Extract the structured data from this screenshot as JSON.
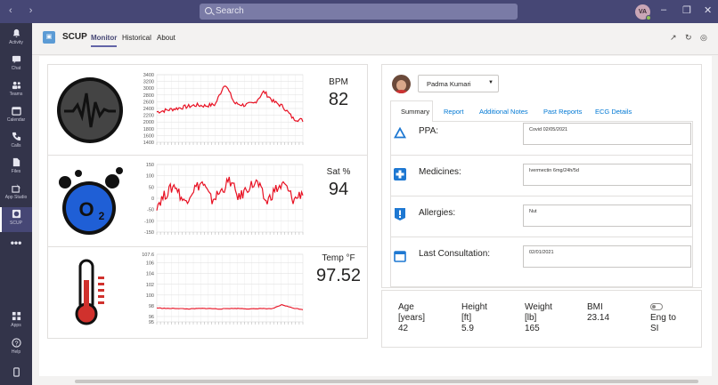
{
  "search": {
    "placeholder": "Search"
  },
  "user": {
    "initials": "VA"
  },
  "rail": [
    {
      "label": "Activity",
      "icon": "bell-icon"
    },
    {
      "label": "Chat",
      "icon": "chat-icon"
    },
    {
      "label": "Teams",
      "icon": "teams-icon"
    },
    {
      "label": "Calendar",
      "icon": "calendar-icon"
    },
    {
      "label": "Calls",
      "icon": "phone-icon"
    },
    {
      "label": "Files",
      "icon": "files-icon"
    },
    {
      "label": "App Studio",
      "icon": "app-studio-icon"
    },
    {
      "label": "SCUP",
      "icon": "scup-icon"
    },
    {
      "label": "Apps",
      "icon": "apps-icon"
    },
    {
      "label": "Help",
      "icon": "help-icon"
    }
  ],
  "app": {
    "name": "SCUP",
    "tabs": [
      "Monitor",
      "Historical",
      "About"
    ],
    "active_tab": "Monitor"
  },
  "vitals": {
    "bpm": {
      "label": "BPM",
      "value": "82"
    },
    "sat": {
      "label": "Sat %",
      "value": "94"
    },
    "temp": {
      "label": "Temp °F",
      "value": "97.52"
    }
  },
  "chart_data": [
    {
      "type": "line",
      "ylim": [
        1400,
        3400
      ],
      "yticks": [
        "3400",
        "3200",
        "3000",
        "2800",
        "2600",
        "2400",
        "2200",
        "2000",
        "1800",
        "1600",
        "1400"
      ],
      "series_color": "#e81123",
      "description_values": [
        2300,
        2350,
        2400,
        2450,
        2500,
        2480,
        2520,
        3150,
        2550,
        2500,
        2550,
        2900,
        2600,
        2450,
        2100,
        2050
      ]
    },
    {
      "type": "line",
      "ylim": [
        -150,
        150
      ],
      "yticks": [
        "150",
        "100",
        "50",
        "0",
        "-50",
        "-100",
        "-150"
      ],
      "series_color": "#e81123",
      "description_values": [
        -30,
        20,
        60,
        -20,
        40,
        70,
        -10,
        30,
        80,
        0,
        50,
        70,
        -20,
        40,
        60,
        -10,
        30
      ]
    },
    {
      "type": "line",
      "ylim": [
        95,
        107.6
      ],
      "yticks": [
        "107.6",
        "106",
        "104",
        "102",
        "100",
        "98",
        "96",
        "95"
      ],
      "series_color": "#e81123",
      "description_values": [
        97.6,
        97.5,
        97.5,
        97.4,
        97.5,
        97.5,
        97.4,
        97.5,
        97.5,
        97.4,
        97.5,
        97.4,
        98.2,
        97.6,
        97.3
      ]
    }
  ],
  "patient": {
    "name": "Padma Kumari"
  },
  "detail_tabs": [
    "Summary",
    "Report",
    "Additional Notes",
    "Past Reports",
    "ECG Details"
  ],
  "fields": [
    {
      "label": "PPA:",
      "value": "Covid 02/05/2021",
      "icon": "triangle-icon"
    },
    {
      "label": "Medicines:",
      "value": "Ivermectin 6mg/24h/5d",
      "icon": "medicine-plus-icon"
    },
    {
      "label": "Allergies:",
      "value": "Nut",
      "icon": "allergy-alert-icon"
    },
    {
      "label": "Last Consultation:",
      "value": "02/01/2021",
      "icon": "calendar-icon"
    }
  ],
  "stats": {
    "age": {
      "label1": "Age",
      "label2": "[years]",
      "value": "42"
    },
    "height": {
      "label1": "Height",
      "label2": "[ft]",
      "value": "5.9"
    },
    "weight": {
      "label1": "Weight",
      "label2": "[lb]",
      "value": "165"
    },
    "bmi": {
      "label1": "BMI",
      "value": "23.14"
    },
    "toggle": {
      "label1": "Eng to",
      "label2": "SI"
    }
  }
}
